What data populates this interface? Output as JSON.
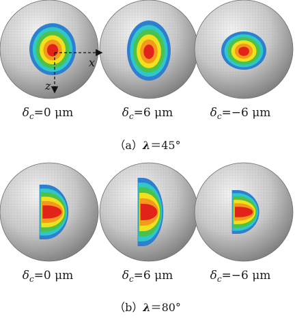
{
  "panels": [
    {
      "caption_letter": "（a）",
      "caption_param": "λ",
      "caption_eq": "＝",
      "caption_value": "45°",
      "spheres": [
        {
          "delta_symbol": "δ",
          "delta_sub": "c",
          "delta_value": "=0 μm"
        },
        {
          "delta_symbol": "δ",
          "delta_sub": "c",
          "delta_value": "=6 μm"
        },
        {
          "delta_symbol": "δ",
          "delta_sub": "c",
          "delta_value": "=−6 μm"
        }
      ]
    },
    {
      "caption_letter": "（b）",
      "caption_param": "λ",
      "caption_eq": "＝",
      "caption_value": "80°",
      "spheres": [
        {
          "delta_symbol": "δ",
          "delta_sub": "c",
          "delta_value": "=0 μm"
        },
        {
          "delta_symbol": "δ",
          "delta_sub": "c",
          "delta_value": "=6 μm"
        },
        {
          "delta_symbol": "δ",
          "delta_sub": "c",
          "delta_value": "=−6 μm"
        }
      ]
    }
  ],
  "axes": {
    "x_label": "x",
    "z_label": "z"
  },
  "colors": {
    "sphere_light": "#f4f4f4",
    "sphere_mid": "#c9c9c9",
    "sphere_dark": "#7d7d7d",
    "grid": "#9a9a9a",
    "contour_outer": "#2f7fd0",
    "contour_cyan": "#2fc7c7",
    "contour_green": "#4cc24a",
    "contour_yellow": "#f2e01d",
    "contour_orange": "#f39a1c",
    "contour_red": "#e2231a"
  }
}
